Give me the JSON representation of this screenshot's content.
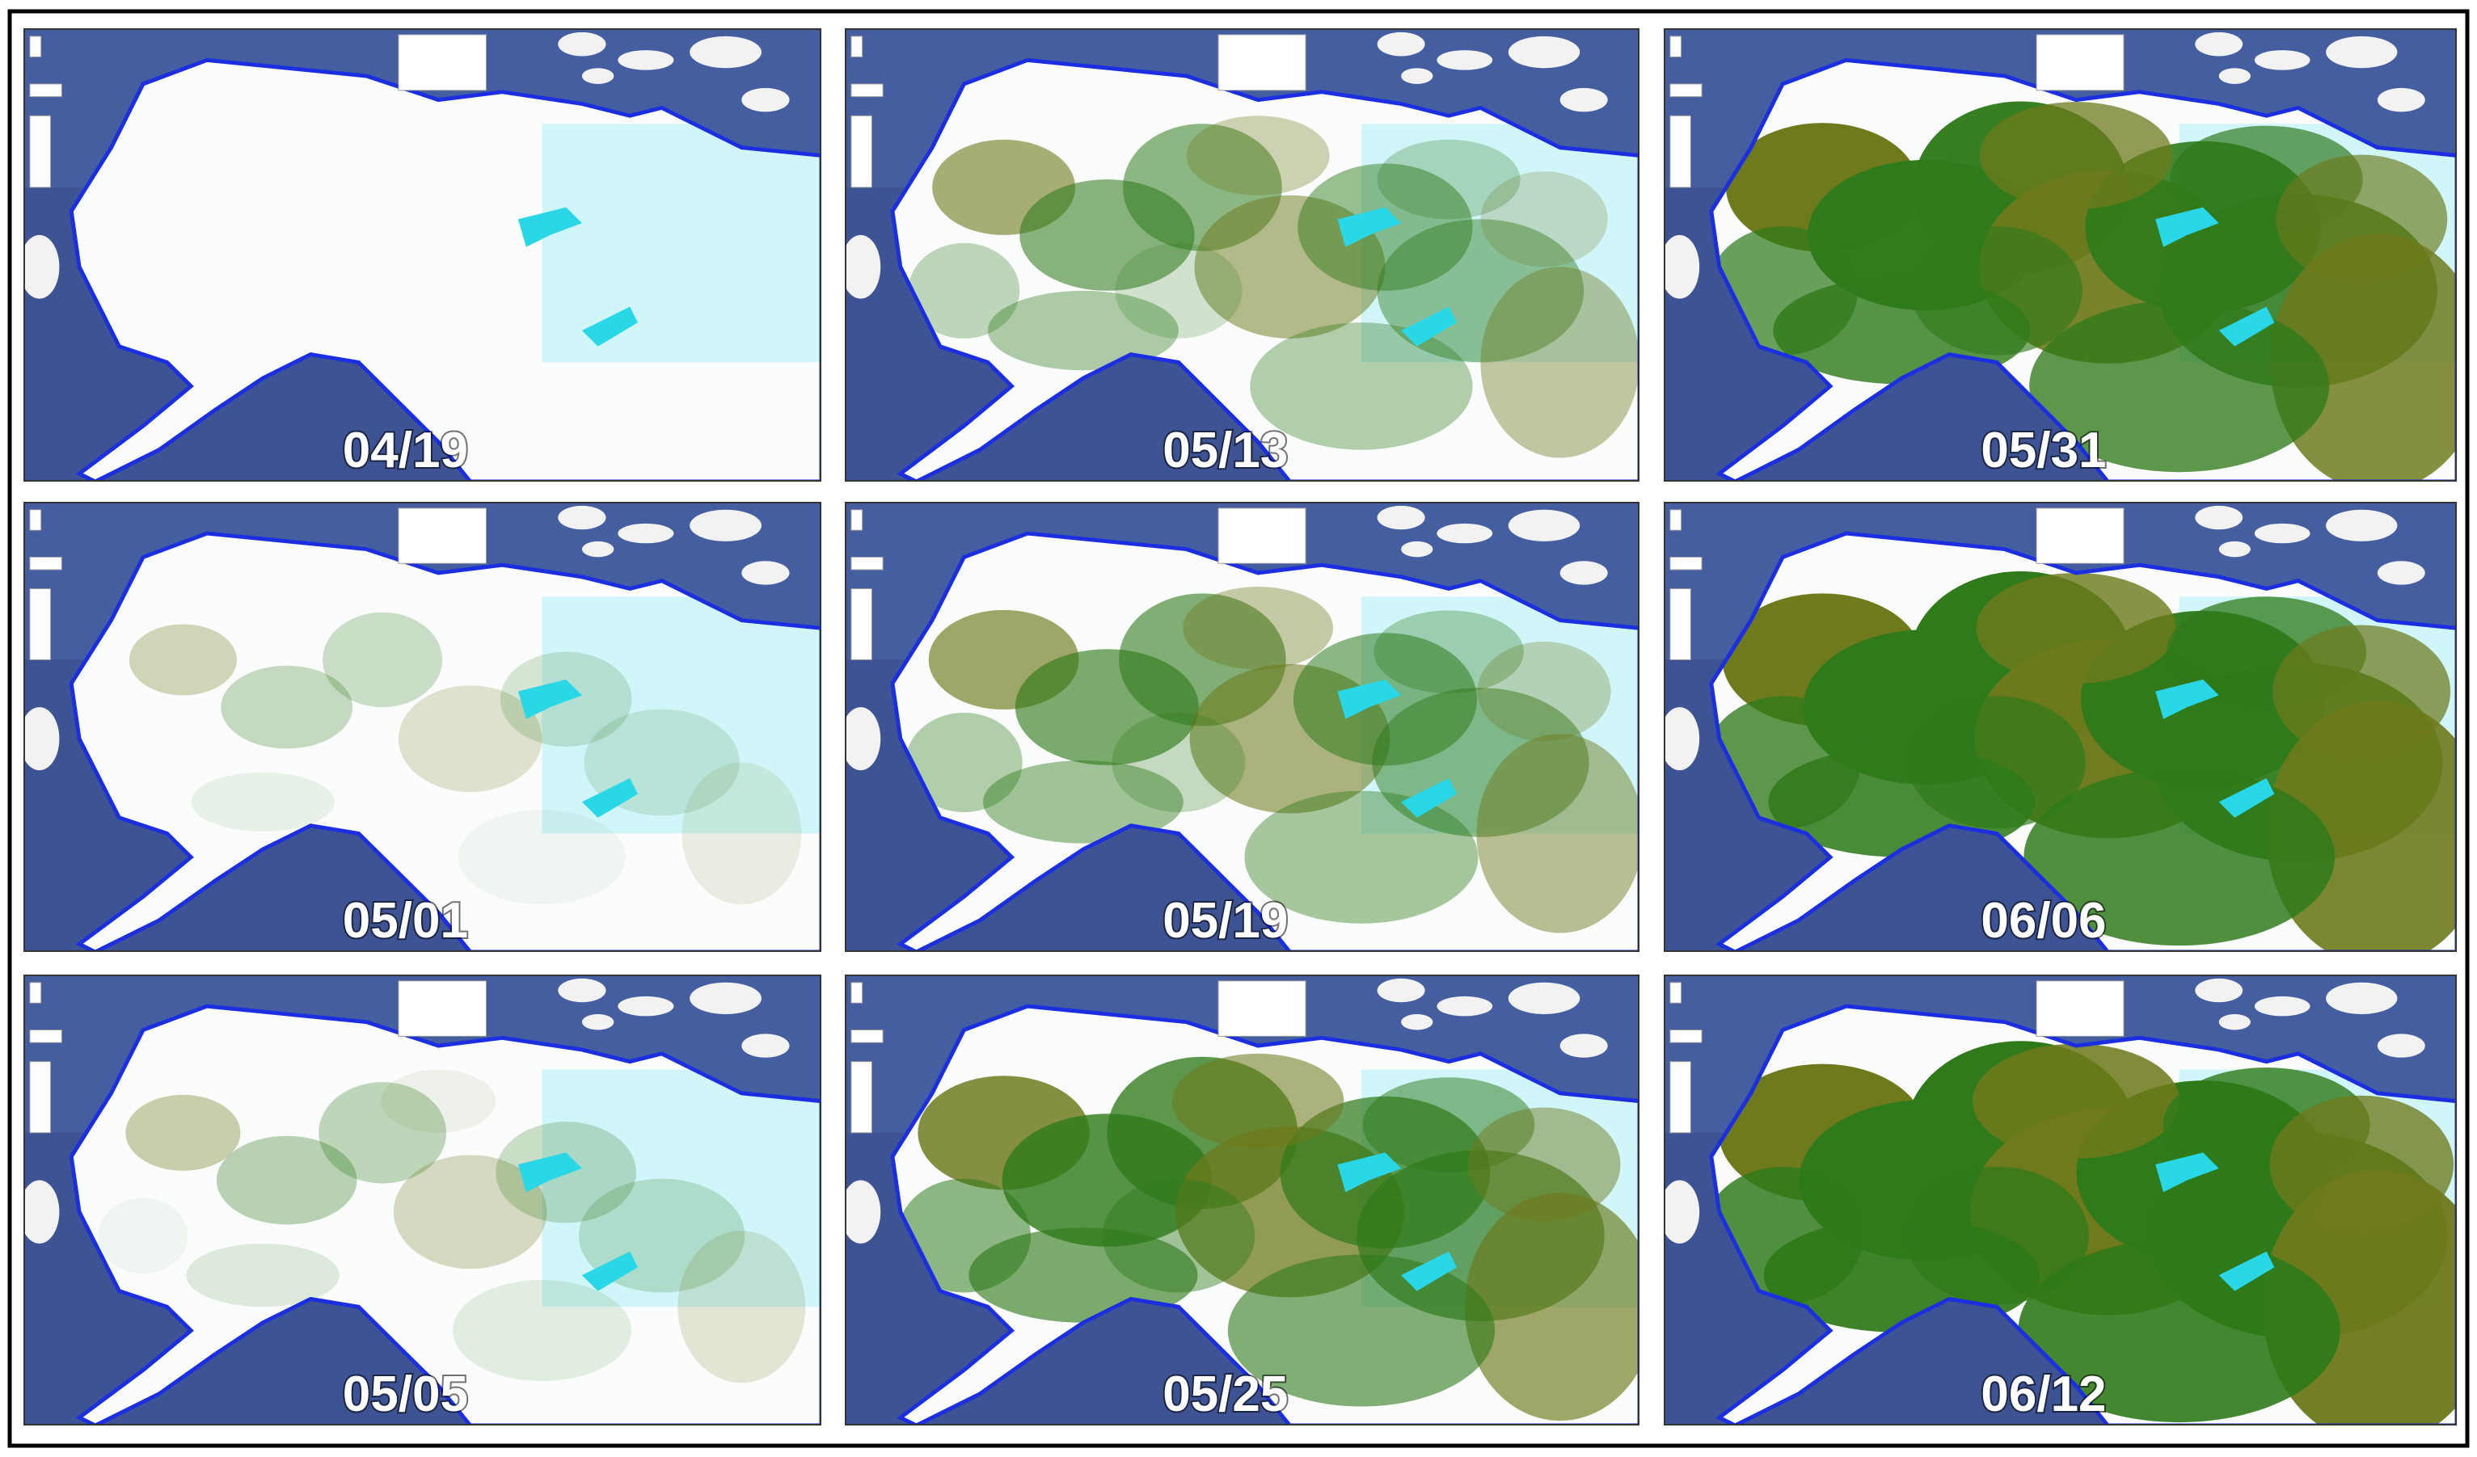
{
  "panels": [
    {
      "label": "04/19"
    },
    {
      "label": "05/13"
    },
    {
      "label": "05/31"
    },
    {
      "label": "05/01"
    },
    {
      "label": "05/19"
    },
    {
      "label": "06/06"
    },
    {
      "label": "05/05"
    },
    {
      "label": "05/25"
    },
    {
      "label": "06/12"
    }
  ]
}
